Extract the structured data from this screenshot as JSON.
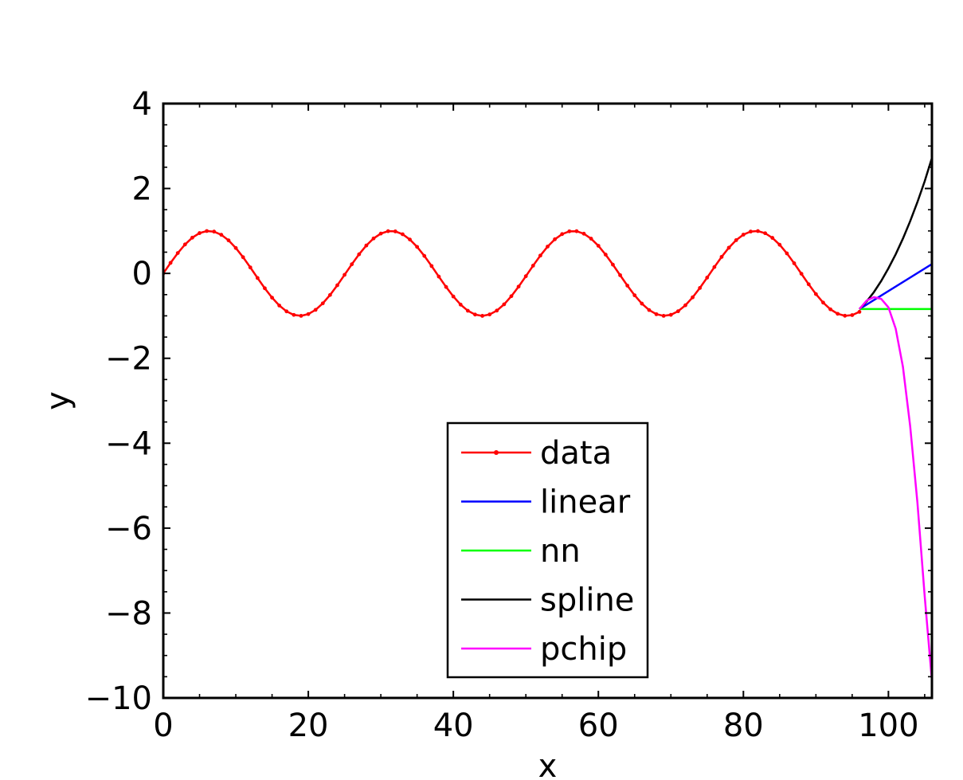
{
  "chart_data": {
    "type": "line",
    "title": "",
    "xlabel": "x",
    "ylabel": "y",
    "xlim": [
      0,
      106
    ],
    "ylim": [
      -10,
      4
    ],
    "x_ticks": [
      0,
      20,
      40,
      60,
      80,
      100
    ],
    "y_ticks": [
      4,
      2,
      0,
      -2,
      -4,
      -6,
      -8,
      -10
    ],
    "x_tick_labels": [
      "0",
      "20",
      "40",
      "60",
      "80",
      "100"
    ],
    "y_tick_labels": [
      "4",
      "2",
      "0",
      "−2",
      "−4",
      "−6",
      "−8",
      "−10"
    ],
    "grid": false,
    "legend_position": "lower-center",
    "data": {
      "description": "y = sin(x/4), x = 0..96 step 1",
      "x_start": 0,
      "x_end": 96,
      "x_step": 1,
      "period_scale": 4
    },
    "series": [
      {
        "name": "data",
        "color": "#ff0000",
        "marker": "dot"
      },
      {
        "name": "linear",
        "color": "#0000ff",
        "x": [
          96,
          106
        ],
        "y": [
          -0.84,
          0.22
        ]
      },
      {
        "name": "nn",
        "color": "#00ff00",
        "x": [
          96,
          106
        ],
        "y": [
          -0.84,
          -0.84
        ]
      },
      {
        "name": "spline",
        "color": "#000000",
        "x": [
          96,
          97,
          98,
          99,
          100,
          101,
          102,
          103,
          104,
          105,
          106
        ],
        "y": [
          -0.84,
          -0.66,
          -0.44,
          -0.18,
          0.12,
          0.45,
          0.82,
          1.23,
          1.68,
          2.17,
          2.72
        ]
      },
      {
        "name": "pchip",
        "color": "#ff00ff",
        "x": [
          96,
          97,
          98,
          99,
          100,
          101,
          102,
          103,
          104,
          105,
          106
        ],
        "y": [
          -0.84,
          -0.64,
          -0.56,
          -0.6,
          -0.8,
          -1.3,
          -2.2,
          -3.6,
          -5.4,
          -7.6,
          -9.6
        ]
      }
    ]
  }
}
